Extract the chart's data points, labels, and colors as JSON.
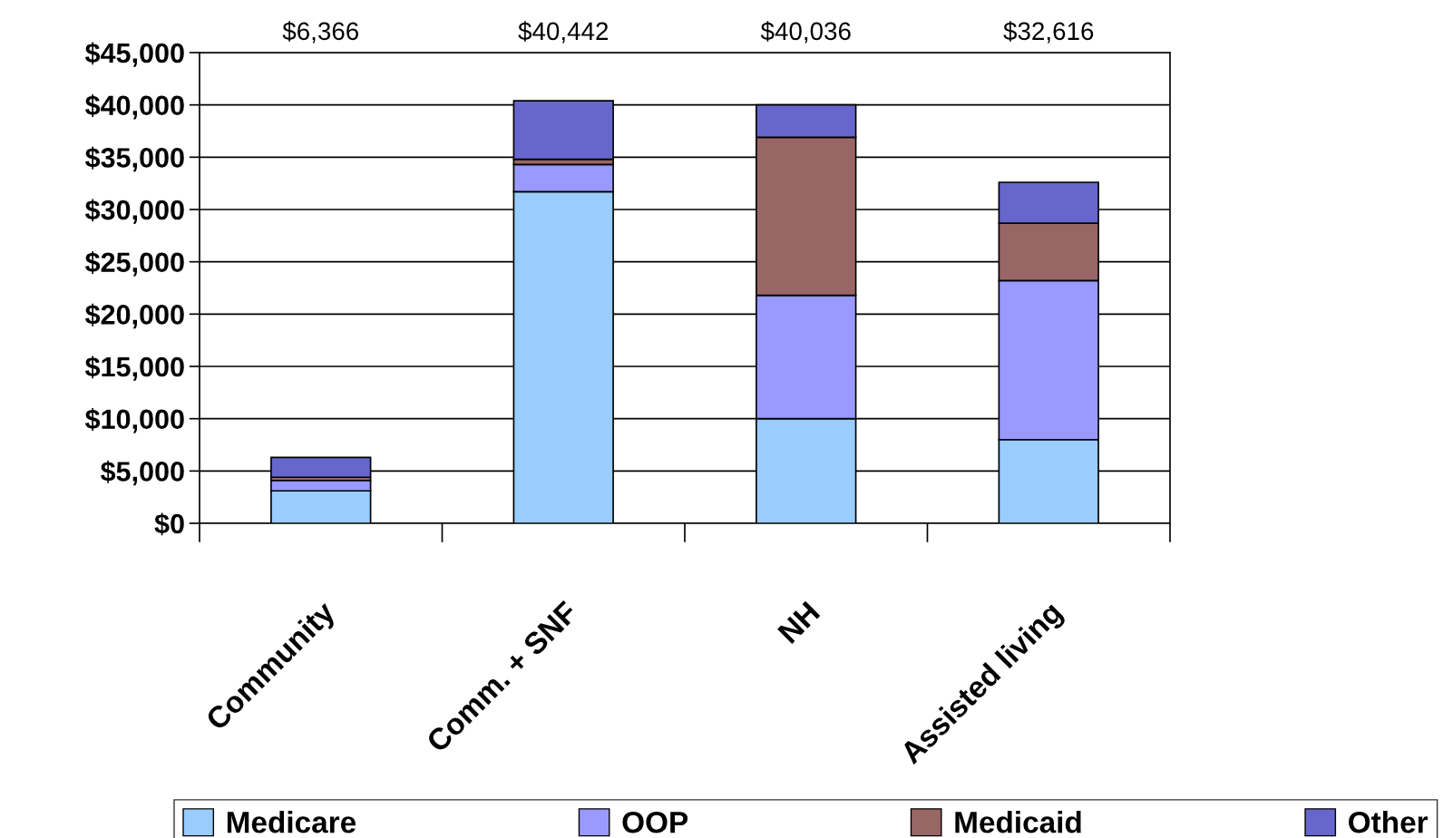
{
  "chart_data": {
    "type": "bar",
    "stacked": true,
    "categories": [
      "Community",
      "Comm. + SNF",
      "NH",
      "Assisted living"
    ],
    "series": [
      {
        "name": "Medicare",
        "color": "#99ccff",
        "values": [
          3100,
          31700,
          10000,
          8000
        ]
      },
      {
        "name": "OOP",
        "color": "#9999ff",
        "values": [
          1000,
          2600,
          11800,
          15200
        ]
      },
      {
        "name": "Medicaid",
        "color": "#996666",
        "values": [
          300,
          500,
          15100,
          5500
        ]
      },
      {
        "name": "Other",
        "color": "#6666cc",
        "values": [
          1900,
          5600,
          3100,
          3900
        ]
      }
    ],
    "annotations": [
      "$6,366",
      "$40,442",
      "$40,036",
      "$32,616"
    ],
    "ylim": [
      0,
      45000
    ],
    "yticks": [
      {
        "value": 0,
        "label": "$0"
      },
      {
        "value": 5000,
        "label": "$5,000"
      },
      {
        "value": 10000,
        "label": "$10,000"
      },
      {
        "value": 15000,
        "label": "$15,000"
      },
      {
        "value": 20000,
        "label": "$20,000"
      },
      {
        "value": 25000,
        "label": "$25,000"
      },
      {
        "value": 30000,
        "label": "$30,000"
      },
      {
        "value": 35000,
        "label": "$35,000"
      },
      {
        "value": 40000,
        "label": "$40,000"
      },
      {
        "value": 45000,
        "label": "$45,000"
      }
    ],
    "grid": "y",
    "legend": "bottom"
  }
}
